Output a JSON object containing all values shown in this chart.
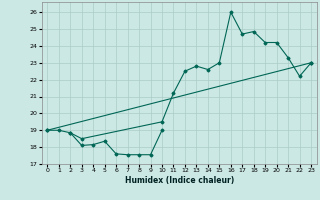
{
  "xlabel": "Humidex (Indice chaleur)",
  "bg_color": "#cce8e4",
  "grid_color": "#aaccc8",
  "line_color": "#006655",
  "xlim": [
    -0.5,
    23.5
  ],
  "ylim": [
    17,
    26.6
  ],
  "xticks": [
    0,
    1,
    2,
    3,
    4,
    5,
    6,
    7,
    8,
    9,
    10,
    11,
    12,
    13,
    14,
    15,
    16,
    17,
    18,
    19,
    20,
    21,
    22,
    23
  ],
  "yticks": [
    17,
    18,
    19,
    20,
    21,
    22,
    23,
    24,
    25,
    26
  ],
  "line1_x": [
    0,
    23
  ],
  "line1_y": [
    19.0,
    23.0
  ],
  "line2_x": [
    0,
    1,
    2,
    3,
    10,
    11,
    12,
    13,
    14,
    15,
    16,
    17,
    18,
    19,
    20,
    21,
    22,
    23
  ],
  "line2_y": [
    19.0,
    19.0,
    18.85,
    18.5,
    19.5,
    21.2,
    22.5,
    22.8,
    22.6,
    23.0,
    26.0,
    24.7,
    24.85,
    24.2,
    24.2,
    23.3,
    22.2,
    23.0
  ],
  "line3_x": [
    2,
    3,
    4,
    5,
    6,
    7,
    8,
    9,
    10
  ],
  "line3_y": [
    18.85,
    18.1,
    18.15,
    18.35,
    17.6,
    17.55,
    17.55,
    17.55,
    19.0
  ]
}
